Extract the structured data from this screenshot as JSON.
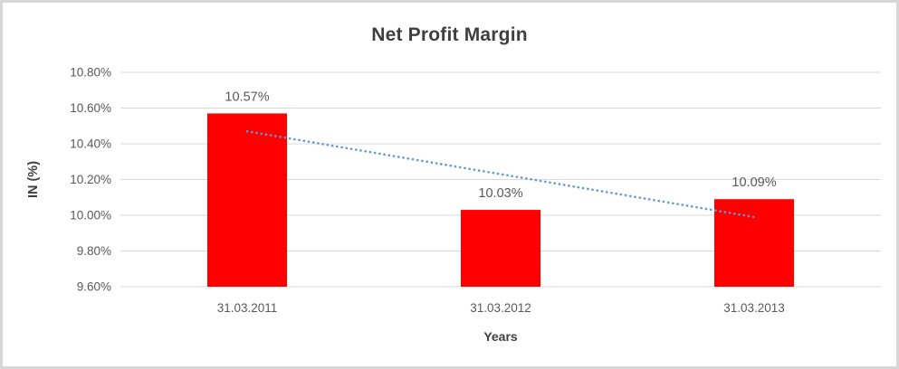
{
  "chart_data": {
    "type": "bar",
    "title": "Net Profit Margin",
    "xlabel": "Years",
    "ylabel": "IN (%)",
    "categories": [
      "31.03.2011",
      "31.03.2012",
      "31.03.2013"
    ],
    "values": [
      10.57,
      10.03,
      10.09
    ],
    "data_labels": [
      "10.57%",
      "10.03%",
      "10.09%"
    ],
    "ylim": [
      9.6,
      10.8
    ],
    "ytick_step": 0.2,
    "ytick_labels": [
      "10.80%",
      "10.60%",
      "10.40%",
      "10.20%",
      "10.00%",
      "9.80%",
      "9.60%"
    ],
    "grid": true,
    "legend": "none",
    "trendline": {
      "type": "linear",
      "style": "dotted",
      "start_value": 10.47,
      "end_value": 9.99
    },
    "colors": {
      "bar": "#FF0000",
      "trendline": "#5B9BD5",
      "gridline": "#D9D9D9",
      "title_text": "#3F3F3F",
      "tick_text": "#595959",
      "data_label_text": "#595959",
      "axis_title_text": "#404040",
      "frame_border": "#D6D6D6",
      "background": "#FFFFFF"
    }
  }
}
